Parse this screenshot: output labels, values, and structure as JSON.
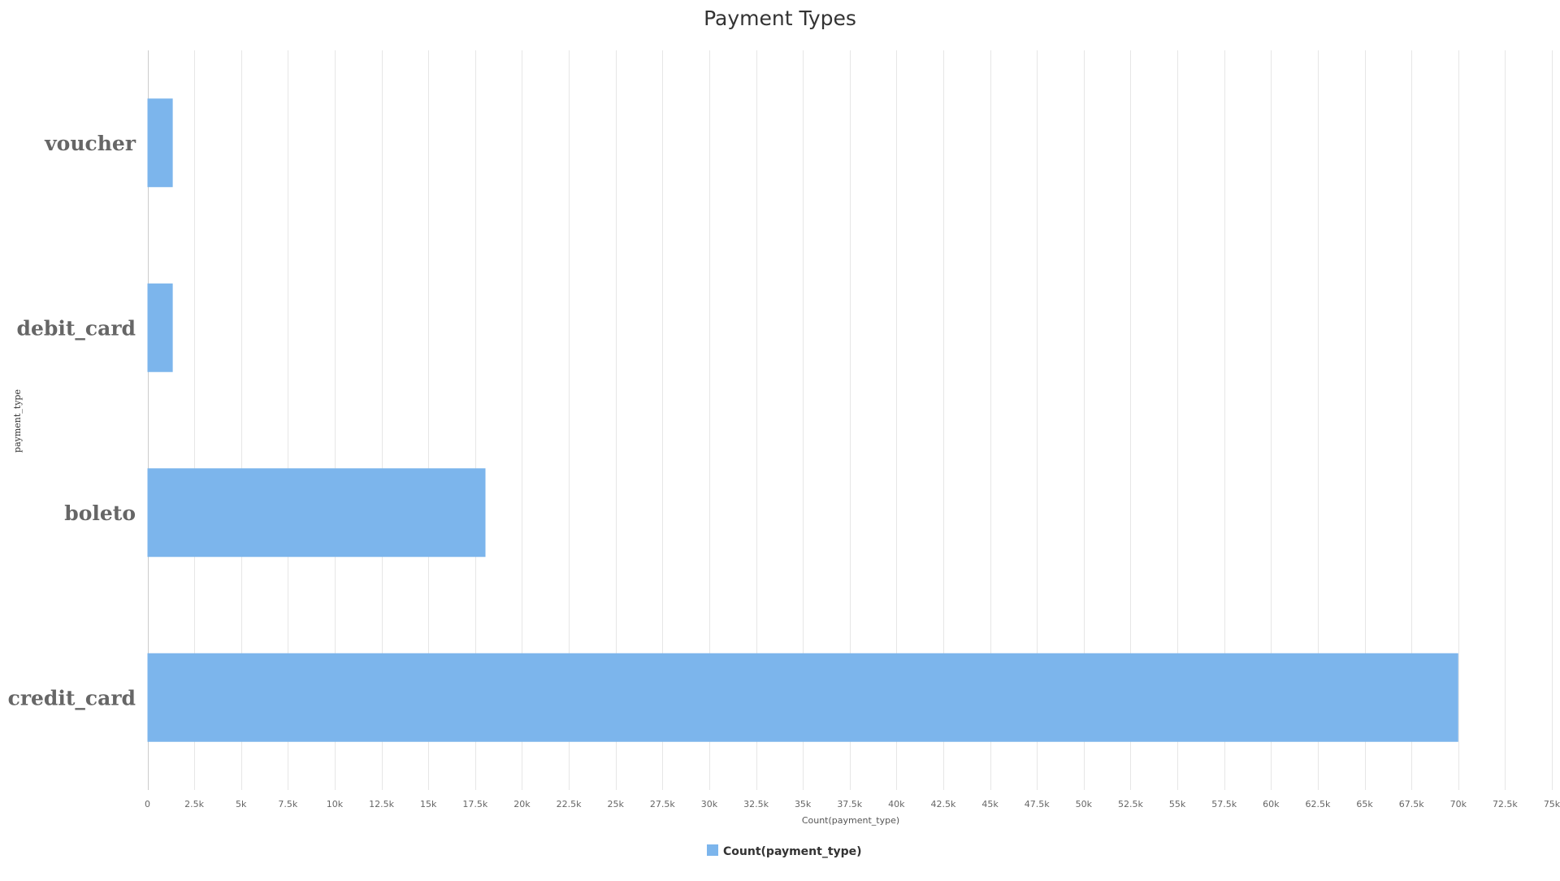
{
  "chart_data": {
    "type": "bar",
    "orientation": "horizontal",
    "title": "Payment Types",
    "xlabel": "Count(payment_type)",
    "ylabel": "payment_type",
    "categories": [
      "voucher",
      "debit_card",
      "boleto",
      "credit_card"
    ],
    "series": [
      {
        "name": "Count(payment_type)",
        "values": [
          1350,
          1350,
          18050,
          70000
        ],
        "color": "#7cb5ec"
      }
    ],
    "xlim": [
      0,
      75000
    ],
    "x_ticks": [
      0,
      2500,
      5000,
      7500,
      10000,
      12500,
      15000,
      17500,
      20000,
      22500,
      25000,
      27500,
      30000,
      32500,
      35000,
      37500,
      40000,
      42500,
      45000,
      47500,
      50000,
      52500,
      55000,
      57500,
      60000,
      62500,
      65000,
      67500,
      70000,
      72500,
      75000
    ],
    "x_tick_labels": [
      "0",
      "2.5k",
      "5k",
      "7.5k",
      "10k",
      "12.5k",
      "15k",
      "17.5k",
      "20k",
      "22.5k",
      "25k",
      "27.5k",
      "30k",
      "32.5k",
      "35k",
      "37.5k",
      "40k",
      "42.5k",
      "45k",
      "47.5k",
      "50k",
      "52.5k",
      "55k",
      "57.5k",
      "60k",
      "62.5k",
      "65k",
      "67.5k",
      "70k",
      "72.5k",
      "75k"
    ],
    "grid": true,
    "legend": "bottom-center"
  }
}
